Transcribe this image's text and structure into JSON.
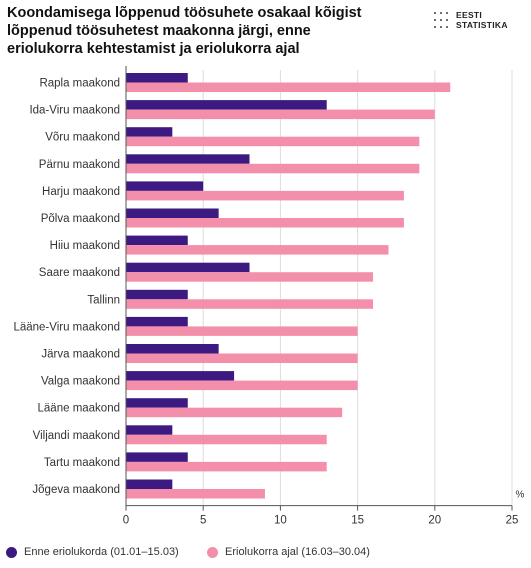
{
  "title_lines": [
    "Koondamisega lõppenud töösuhete osakaal kõigist",
    "lõppenud töösuhetest maakonna järgi, enne",
    "eriolukorra kehtestamist  ja eriolukorra ajal"
  ],
  "logo": {
    "line1": "EESTI",
    "line2": "STATISTIKA"
  },
  "chart_data": {
    "type": "bar",
    "orientation": "horizontal",
    "title": "Koondamisega lõppenud töösuhete osakaal kõigist lõppenud töösuhetest maakonna järgi, enne eriolukorra kehtestamist  ja eriolukorra ajal",
    "categories": [
      "Rapla maakond",
      "Ida-Viru maakond",
      "Võru maakond",
      "Pärnu maakond",
      "Harju maakond",
      "Põlva maakond",
      "Hiiu maakond",
      "Saare maakond",
      "Tallinn",
      "Lääne-Viru maakond",
      "Järva maakond",
      "Valga maakond",
      "Lääne maakond",
      "Viljandi maakond",
      "Tartu maakond",
      "Jõgeva maakond"
    ],
    "series": [
      {
        "name": "Enne eriolukorda (01.01–15.03)",
        "color": "#3d1a82",
        "values": [
          4,
          13,
          3,
          8,
          5,
          6,
          4,
          8,
          4,
          4,
          6,
          7,
          4,
          3,
          4,
          3
        ]
      },
      {
        "name": "Eriolukorra ajal (16.03–30.04)",
        "color": "#f48fab",
        "values": [
          21,
          20,
          19,
          19,
          18,
          18,
          17,
          16,
          16,
          15,
          15,
          15,
          14,
          13,
          13,
          9
        ]
      }
    ],
    "xlim": [
      0,
      25
    ],
    "xticks": [
      0,
      5,
      10,
      15,
      20,
      25
    ],
    "xunit": "%",
    "grid": true,
    "legend_position": "bottom"
  }
}
